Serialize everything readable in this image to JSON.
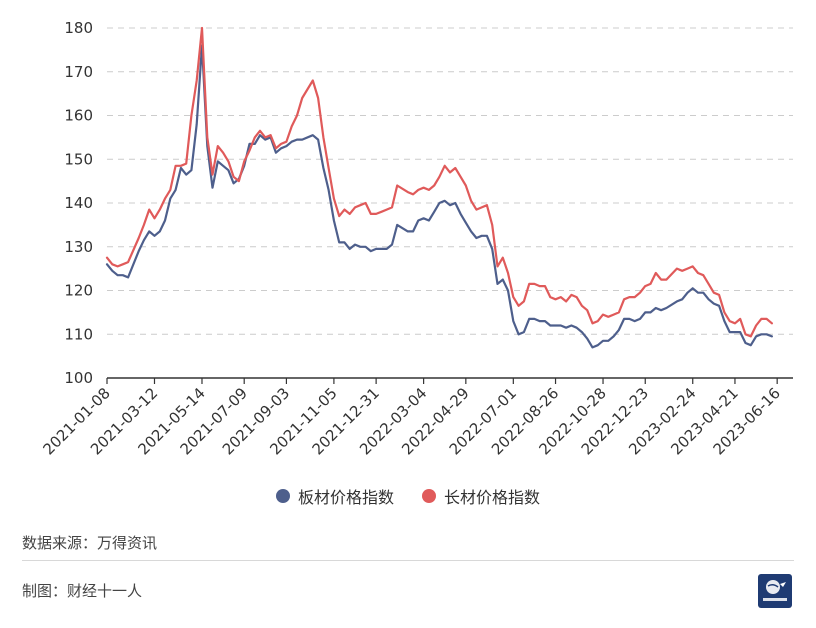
{
  "chart_data": {
    "type": "line",
    "x_tick_labels": [
      "2021-01-08",
      "2021-03-12",
      "2021-05-14",
      "2021-07-09",
      "2021-09-03",
      "2021-11-05",
      "2021-12-31",
      "2022-03-04",
      "2022-04-29",
      "2022-07-01",
      "2022-08-26",
      "2022-10-28",
      "2022-12-23",
      "2023-02-24",
      "2023-04-21",
      "2023-06-16"
    ],
    "x_range": [
      "2021-01-08",
      "2023-07-07"
    ],
    "ylim": [
      100,
      180
    ],
    "y_ticks": [
      100,
      110,
      120,
      130,
      140,
      150,
      160,
      170,
      180
    ],
    "grid": "horizontal-dashed",
    "legend_position": "bottom-center",
    "series": [
      {
        "name": "板材价格指数",
        "color": "#4e5f8c",
        "points": [
          [
            "2021-01-08",
            126
          ],
          [
            "2021-01-15",
            124.5
          ],
          [
            "2021-01-22",
            123.5
          ],
          [
            "2021-01-29",
            123.5
          ],
          [
            "2021-02-05",
            123
          ],
          [
            "2021-02-19",
            129
          ],
          [
            "2021-02-26",
            131.5
          ],
          [
            "2021-03-05",
            133.5
          ],
          [
            "2021-03-12",
            132.5
          ],
          [
            "2021-03-19",
            133.5
          ],
          [
            "2021-03-26",
            136
          ],
          [
            "2021-04-02",
            141
          ],
          [
            "2021-04-09",
            143
          ],
          [
            "2021-04-16",
            148
          ],
          [
            "2021-04-23",
            146.5
          ],
          [
            "2021-04-30",
            147.5
          ],
          [
            "2021-05-07",
            158
          ],
          [
            "2021-05-14",
            176
          ],
          [
            "2021-05-21",
            153
          ],
          [
            "2021-05-28",
            143.5
          ],
          [
            "2021-06-04",
            149.5
          ],
          [
            "2021-06-11",
            148.5
          ],
          [
            "2021-06-18",
            147.5
          ],
          [
            "2021-06-25",
            144.5
          ],
          [
            "2021-07-02",
            145.5
          ],
          [
            "2021-07-09",
            148.5
          ],
          [
            "2021-07-16",
            153.5
          ],
          [
            "2021-07-23",
            153.5
          ],
          [
            "2021-07-30",
            155.5
          ],
          [
            "2021-08-06",
            154.5
          ],
          [
            "2021-08-13",
            155
          ],
          [
            "2021-08-20",
            151.5
          ],
          [
            "2021-08-27",
            152.5
          ],
          [
            "2021-09-03",
            153
          ],
          [
            "2021-09-10",
            154
          ],
          [
            "2021-09-17",
            154.5
          ],
          [
            "2021-09-24",
            154.5
          ],
          [
            "2021-10-08",
            155.5
          ],
          [
            "2021-10-15",
            154.5
          ],
          [
            "2021-10-22",
            148
          ],
          [
            "2021-10-29",
            143
          ],
          [
            "2021-11-05",
            136
          ],
          [
            "2021-11-12",
            131
          ],
          [
            "2021-11-19",
            131
          ],
          [
            "2021-11-26",
            129.5
          ],
          [
            "2021-12-03",
            130.5
          ],
          [
            "2021-12-10",
            130
          ],
          [
            "2021-12-17",
            130
          ],
          [
            "2021-12-24",
            129
          ],
          [
            "2021-12-31",
            129.5
          ],
          [
            "2022-01-07",
            129.5
          ],
          [
            "2022-01-14",
            129.5
          ],
          [
            "2022-01-21",
            130.5
          ],
          [
            "2022-01-28",
            135
          ],
          [
            "2022-02-11",
            133.5
          ],
          [
            "2022-02-18",
            133.5
          ],
          [
            "2022-02-25",
            136
          ],
          [
            "2022-03-04",
            136.5
          ],
          [
            "2022-03-11",
            136
          ],
          [
            "2022-03-18",
            138
          ],
          [
            "2022-03-25",
            140
          ],
          [
            "2022-04-01",
            140.5
          ],
          [
            "2022-04-08",
            139.5
          ],
          [
            "2022-04-15",
            140
          ],
          [
            "2022-04-22",
            137.5
          ],
          [
            "2022-04-29",
            135.5
          ],
          [
            "2022-05-06",
            133.5
          ],
          [
            "2022-05-13",
            132
          ],
          [
            "2022-05-20",
            132.5
          ],
          [
            "2022-05-27",
            132.5
          ],
          [
            "2022-06-03",
            129.5
          ],
          [
            "2022-06-10",
            121.5
          ],
          [
            "2022-06-17",
            122.5
          ],
          [
            "2022-06-24",
            120
          ],
          [
            "2022-07-01",
            113
          ],
          [
            "2022-07-08",
            110
          ],
          [
            "2022-07-15",
            110.5
          ],
          [
            "2022-07-22",
            113.5
          ],
          [
            "2022-07-29",
            113.5
          ],
          [
            "2022-08-05",
            113
          ],
          [
            "2022-08-12",
            113
          ],
          [
            "2022-08-19",
            112
          ],
          [
            "2022-08-26",
            112
          ],
          [
            "2022-09-02",
            112
          ],
          [
            "2022-09-09",
            111.5
          ],
          [
            "2022-09-16",
            112
          ],
          [
            "2022-09-23",
            111.5
          ],
          [
            "2022-09-30",
            110.5
          ],
          [
            "2022-10-07",
            109
          ],
          [
            "2022-10-14",
            107
          ],
          [
            "2022-10-21",
            107.5
          ],
          [
            "2022-10-28",
            108.5
          ],
          [
            "2022-11-04",
            108.5
          ],
          [
            "2022-11-11",
            109.5
          ],
          [
            "2022-11-18",
            111
          ],
          [
            "2022-11-25",
            113.5
          ],
          [
            "2022-12-02",
            113.5
          ],
          [
            "2022-12-09",
            113
          ],
          [
            "2022-12-16",
            113.5
          ],
          [
            "2022-12-23",
            115
          ],
          [
            "2022-12-30",
            115
          ],
          [
            "2023-01-06",
            116
          ],
          [
            "2023-01-13",
            115.5
          ],
          [
            "2023-01-20",
            116
          ],
          [
            "2023-02-03",
            117.5
          ],
          [
            "2023-02-10",
            118
          ],
          [
            "2023-02-17",
            119.5
          ],
          [
            "2023-02-24",
            120.5
          ],
          [
            "2023-03-03",
            119.5
          ],
          [
            "2023-03-10",
            119.5
          ],
          [
            "2023-03-17",
            118
          ],
          [
            "2023-03-24",
            117
          ],
          [
            "2023-03-31",
            116.5
          ],
          [
            "2023-04-07",
            113
          ],
          [
            "2023-04-14",
            110.5
          ],
          [
            "2023-04-21",
            110.5
          ],
          [
            "2023-04-28",
            110.5
          ],
          [
            "2023-05-05",
            108
          ],
          [
            "2023-05-12",
            107.5
          ],
          [
            "2023-05-19",
            109.5
          ],
          [
            "2023-05-26",
            110
          ],
          [
            "2023-06-02",
            110
          ],
          [
            "2023-06-09",
            109.5
          ]
        ]
      },
      {
        "name": "长材价格指数",
        "color": "#e05a5a",
        "points": [
          [
            "2021-01-08",
            127.5
          ],
          [
            "2021-01-15",
            126
          ],
          [
            "2021-01-22",
            125.5
          ],
          [
            "2021-01-29",
            126
          ],
          [
            "2021-02-05",
            126.5
          ],
          [
            "2021-02-19",
            132
          ],
          [
            "2021-02-26",
            135
          ],
          [
            "2021-03-05",
            138.5
          ],
          [
            "2021-03-12",
            136.5
          ],
          [
            "2021-03-19",
            138.5
          ],
          [
            "2021-03-26",
            141
          ],
          [
            "2021-04-02",
            143
          ],
          [
            "2021-04-09",
            148.5
          ],
          [
            "2021-04-16",
            148.5
          ],
          [
            "2021-04-23",
            149
          ],
          [
            "2021-04-30",
            160
          ],
          [
            "2021-05-07",
            168
          ],
          [
            "2021-05-14",
            180
          ],
          [
            "2021-05-21",
            155
          ],
          [
            "2021-05-28",
            146.5
          ],
          [
            "2021-06-04",
            153
          ],
          [
            "2021-06-11",
            151.5
          ],
          [
            "2021-06-18",
            149.5
          ],
          [
            "2021-06-25",
            146
          ],
          [
            "2021-07-02",
            145
          ],
          [
            "2021-07-09",
            149.5
          ],
          [
            "2021-07-16",
            152
          ],
          [
            "2021-07-23",
            155
          ],
          [
            "2021-07-30",
            156.5
          ],
          [
            "2021-08-06",
            155
          ],
          [
            "2021-08-13",
            155.5
          ],
          [
            "2021-08-20",
            152.5
          ],
          [
            "2021-08-27",
            153.5
          ],
          [
            "2021-09-03",
            154
          ],
          [
            "2021-09-10",
            157.5
          ],
          [
            "2021-09-17",
            160
          ],
          [
            "2021-09-24",
            164
          ],
          [
            "2021-10-08",
            168
          ],
          [
            "2021-10-15",
            164
          ],
          [
            "2021-10-22",
            155
          ],
          [
            "2021-10-29",
            148
          ],
          [
            "2021-11-05",
            141
          ],
          [
            "2021-11-12",
            137
          ],
          [
            "2021-11-19",
            138.5
          ],
          [
            "2021-11-26",
            137.5
          ],
          [
            "2021-12-03",
            139
          ],
          [
            "2021-12-10",
            139.5
          ],
          [
            "2021-12-17",
            140
          ],
          [
            "2021-12-24",
            137.5
          ],
          [
            "2021-12-31",
            137.5
          ],
          [
            "2022-01-07",
            138
          ],
          [
            "2022-01-14",
            138.5
          ],
          [
            "2022-01-21",
            139
          ],
          [
            "2022-01-28",
            144
          ],
          [
            "2022-02-11",
            142.5
          ],
          [
            "2022-02-18",
            142
          ],
          [
            "2022-02-25",
            143
          ],
          [
            "2022-03-04",
            143.5
          ],
          [
            "2022-03-11",
            143
          ],
          [
            "2022-03-18",
            144
          ],
          [
            "2022-03-25",
            146
          ],
          [
            "2022-04-01",
            148.5
          ],
          [
            "2022-04-08",
            147
          ],
          [
            "2022-04-15",
            148
          ],
          [
            "2022-04-22",
            146
          ],
          [
            "2022-04-29",
            144
          ],
          [
            "2022-05-06",
            140.5
          ],
          [
            "2022-05-13",
            138.5
          ],
          [
            "2022-05-20",
            139
          ],
          [
            "2022-05-27",
            139.5
          ],
          [
            "2022-06-03",
            135
          ],
          [
            "2022-06-10",
            125.5
          ],
          [
            "2022-06-17",
            127.5
          ],
          [
            "2022-06-24",
            124
          ],
          [
            "2022-07-01",
            118.5
          ],
          [
            "2022-07-08",
            116.5
          ],
          [
            "2022-07-15",
            117.5
          ],
          [
            "2022-07-22",
            121.5
          ],
          [
            "2022-07-29",
            121.5
          ],
          [
            "2022-08-05",
            121
          ],
          [
            "2022-08-12",
            121
          ],
          [
            "2022-08-19",
            118.5
          ],
          [
            "2022-08-26",
            118
          ],
          [
            "2022-09-02",
            118.5
          ],
          [
            "2022-09-09",
            117.5
          ],
          [
            "2022-09-16",
            119
          ],
          [
            "2022-09-23",
            118.5
          ],
          [
            "2022-09-30",
            116.5
          ],
          [
            "2022-10-07",
            115.5
          ],
          [
            "2022-10-14",
            112.5
          ],
          [
            "2022-10-21",
            113
          ],
          [
            "2022-10-28",
            114.5
          ],
          [
            "2022-11-04",
            114
          ],
          [
            "2022-11-11",
            114.5
          ],
          [
            "2022-11-18",
            115
          ],
          [
            "2022-11-25",
            118
          ],
          [
            "2022-12-02",
            118.5
          ],
          [
            "2022-12-09",
            118.5
          ],
          [
            "2022-12-16",
            119.5
          ],
          [
            "2022-12-23",
            121
          ],
          [
            "2022-12-30",
            121.5
          ],
          [
            "2023-01-06",
            124
          ],
          [
            "2023-01-13",
            122.5
          ],
          [
            "2023-01-20",
            122.5
          ],
          [
            "2023-02-03",
            125
          ],
          [
            "2023-02-10",
            124.5
          ],
          [
            "2023-02-17",
            125
          ],
          [
            "2023-02-24",
            125.5
          ],
          [
            "2023-03-03",
            124
          ],
          [
            "2023-03-10",
            123.5
          ],
          [
            "2023-03-17",
            121.5
          ],
          [
            "2023-03-24",
            119.5
          ],
          [
            "2023-03-31",
            119
          ],
          [
            "2023-04-07",
            115
          ],
          [
            "2023-04-14",
            113
          ],
          [
            "2023-04-21",
            112.5
          ],
          [
            "2023-04-28",
            113.5
          ],
          [
            "2023-05-05",
            110
          ],
          [
            "2023-05-12",
            109.5
          ],
          [
            "2023-05-19",
            112
          ],
          [
            "2023-05-26",
            113.5
          ],
          [
            "2023-06-02",
            113.5
          ],
          [
            "2023-06-09",
            112.5
          ]
        ]
      }
    ]
  },
  "footer": {
    "source": "数据来源：万得资讯",
    "author": "制图：财经十一人",
    "logo_text": "财经十一人"
  }
}
